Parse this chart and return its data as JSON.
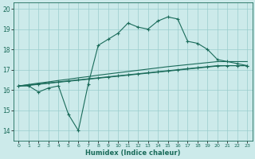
{
  "xlabel": "Humidex (Indice chaleur)",
  "bg_color": "#cceaea",
  "grid_color": "#99cccc",
  "line_color": "#1a6b5a",
  "xlim": [
    -0.5,
    23.5
  ],
  "ylim": [
    13.5,
    20.3
  ],
  "yticks": [
    14,
    15,
    16,
    17,
    18,
    19,
    20
  ],
  "xticks": [
    0,
    1,
    2,
    3,
    4,
    5,
    6,
    7,
    8,
    9,
    10,
    11,
    12,
    13,
    14,
    15,
    16,
    17,
    18,
    19,
    20,
    21,
    22,
    23
  ],
  "series": {
    "line1": [
      16.2,
      16.2,
      15.9,
      16.1,
      16.2,
      14.8,
      14.0,
      16.3,
      18.2,
      18.5,
      18.8,
      19.3,
      19.1,
      19.0,
      19.4,
      19.6,
      19.5,
      18.4,
      18.3,
      18.0,
      17.5,
      17.4,
      17.3,
      17.2
    ],
    "line2": [
      16.2,
      16.25,
      16.3,
      16.35,
      16.4,
      16.45,
      16.5,
      16.55,
      16.6,
      16.65,
      16.7,
      16.75,
      16.8,
      16.85,
      16.9,
      16.95,
      17.0,
      17.05,
      17.1,
      17.15,
      17.2,
      17.2,
      17.2,
      17.2
    ],
    "line3": [
      16.2,
      16.22,
      16.28,
      16.33,
      16.38,
      16.43,
      16.48,
      16.53,
      16.58,
      16.63,
      16.68,
      16.73,
      16.78,
      16.83,
      16.88,
      16.93,
      16.98,
      17.03,
      17.08,
      17.13,
      17.18,
      17.2,
      17.2,
      17.2
    ],
    "line4": [
      16.2,
      16.27,
      16.34,
      16.4,
      16.47,
      16.53,
      16.6,
      16.66,
      16.73,
      16.79,
      16.85,
      16.91,
      16.97,
      17.03,
      17.09,
      17.15,
      17.2,
      17.25,
      17.3,
      17.35,
      17.4,
      17.4,
      17.4,
      17.4
    ]
  }
}
